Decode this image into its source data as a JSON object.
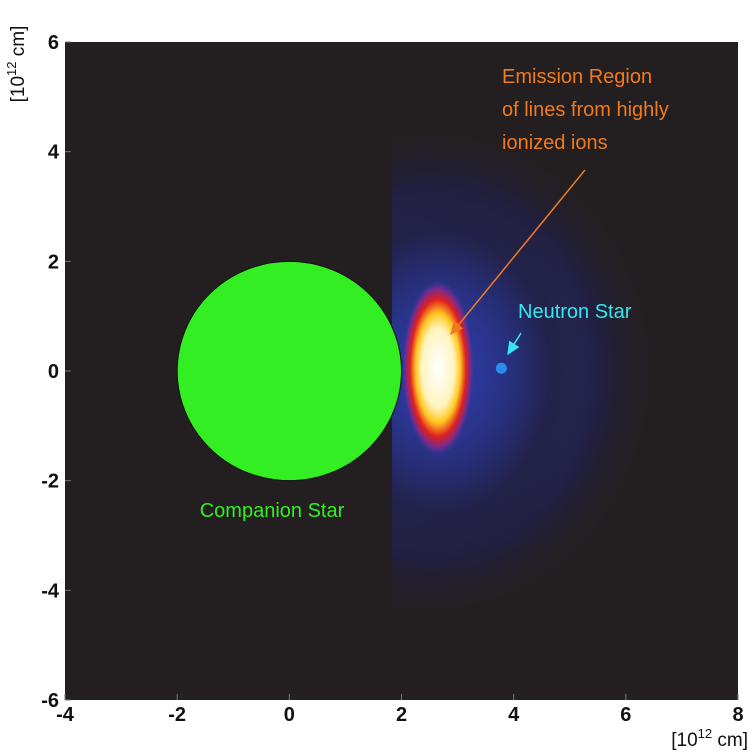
{
  "chart_data": {
    "type": "map",
    "xlim": [
      -4,
      8
    ],
    "ylim": [
      -6,
      6
    ],
    "xticks": [
      -4,
      -2,
      0,
      2,
      4,
      6,
      8
    ],
    "yticks": [
      -6,
      -4,
      -2,
      0,
      2,
      4,
      6
    ],
    "background": "#231f20",
    "x_label": {
      "prefix": "[10",
      "exponent": "12",
      "suffix": " cm]"
    },
    "y_label": {
      "prefix": "[10",
      "exponent": "12",
      "suffix": " cm]"
    },
    "companion": {
      "name": "Companion Star",
      "x": 0,
      "y": 0,
      "radius": 2,
      "color": "#33ee22"
    },
    "neutron": {
      "name": "Neutron Star",
      "x": 3.78,
      "y": 0.05,
      "color": "#2a8cf0",
      "label_color": "#33e8f0"
    },
    "emission": {
      "lines": [
        "Emission Region",
        "of lines from highly",
        "ionized ions"
      ],
      "color": "#f07a1e"
    }
  }
}
